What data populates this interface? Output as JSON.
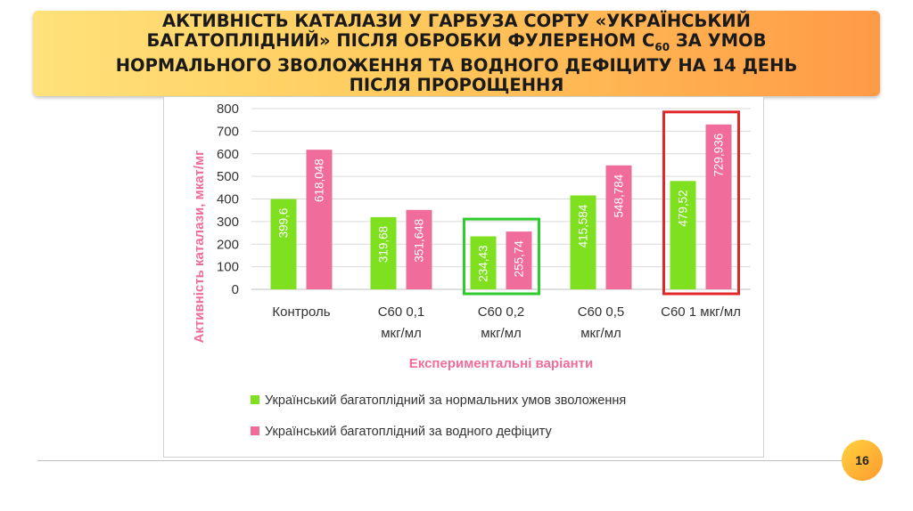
{
  "title": {
    "line1": "АКТИВНІСТЬ КАТАЛАЗИ У ГАРБУЗА СОРТУ «УКРАЇНСЬКИЙ",
    "line2_a": "БАГАТОПЛІДНИЙ» ПІСЛЯ  ОБРОБКИ ФУЛЕРЕНОМ С",
    "line2_sub": "60",
    "line2_b": " ЗА УМОВ",
    "line3": "НОРМАЛЬНОГО ЗВОЛОЖЕННЯ ТА ВОДНОГО ДЕФІЦИТУ НА 14 ДЕНЬ",
    "line4": "ПІСЛЯ ПРОРОЩЕННЯ"
  },
  "page_number": "16",
  "colors": {
    "green": "#7ee01f",
    "pink": "#f06c9b",
    "axis_title": "#f06c9b",
    "highlight_green": "#2ecc2e",
    "highlight_red": "#e0282a"
  },
  "chart_data": {
    "type": "bar",
    "categories": [
      [
        "Контроль"
      ],
      [
        "С60 0,1",
        "мкг/мл"
      ],
      [
        "С60 0,2",
        "мкг/мл"
      ],
      [
        "С60 0,5",
        "мкг/мл"
      ],
      [
        "С60 1 мкг/мл"
      ]
    ],
    "series": [
      {
        "name": "Український багатоплідний за нормальних умов зволоження",
        "values": [
          399.6,
          319.68,
          234.43,
          415.584,
          479.52
        ],
        "labels": [
          "399,6",
          "319,68",
          "234,43",
          "415,584",
          "479,52"
        ]
      },
      {
        "name": "Український багатоплідний за водного дефіциту",
        "values": [
          618.048,
          351.648,
          255.74,
          548.784,
          729.936
        ],
        "labels": [
          "618,048",
          "351,648",
          "255,74",
          "548,784",
          "729,936"
        ]
      }
    ],
    "xlabel": "Експериментальні варіанти",
    "ylabel": "Активність каталази, мкат/мг",
    "ylim": [
      0,
      800
    ],
    "yticks": [
      0,
      100,
      200,
      300,
      400,
      500,
      600,
      700,
      800
    ],
    "grid": true,
    "legend": "bottom",
    "highlights": [
      {
        "category_index": 2,
        "color": "green"
      },
      {
        "category_index": 4,
        "color": "red"
      }
    ]
  }
}
